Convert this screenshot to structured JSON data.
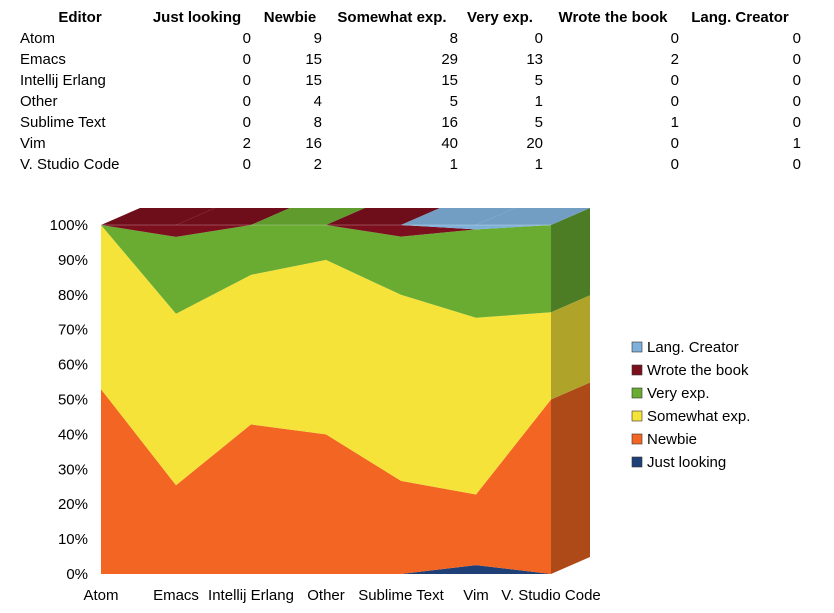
{
  "table": {
    "header_label": "Editor",
    "columns": [
      "Just looking",
      "Newbie",
      "Somewhat exp.",
      "Very exp.",
      "Wrote the book",
      "Lang. Creator"
    ],
    "rows": [
      {
        "editor": "Atom",
        "values": [
          "0",
          "9",
          "8",
          "0",
          "0",
          "0"
        ]
      },
      {
        "editor": "Emacs",
        "values": [
          "0",
          "15",
          "29",
          "13",
          "2",
          "0"
        ]
      },
      {
        "editor": "Intellij Erlang",
        "values": [
          "0",
          "15",
          "15",
          "5",
          "0",
          "0"
        ]
      },
      {
        "editor": "Other",
        "values": [
          "0",
          "4",
          "5",
          "1",
          "0",
          "0"
        ]
      },
      {
        "editor": "Sublime Text",
        "values": [
          "0",
          "8",
          "16",
          "5",
          "1",
          "0"
        ]
      },
      {
        "editor": "Vim",
        "values": [
          "2",
          "16",
          "40",
          "20",
          "0",
          "1"
        ]
      },
      {
        "editor": "V. Studio Code",
        "values": [
          "0",
          "2",
          "1",
          "1",
          "0",
          "0"
        ]
      }
    ]
  },
  "chart_data": {
    "type": "area",
    "stacked": "percent",
    "three_d": true,
    "title": "",
    "xlabel": "",
    "ylabel": "",
    "categories": [
      "Atom",
      "Emacs",
      "Intellij Erlang",
      "Other",
      "Sublime Text",
      "Vim",
      "V. Studio Code"
    ],
    "ylim": [
      0,
      100
    ],
    "ytick_labels": [
      "0%",
      "10%",
      "20%",
      "30%",
      "40%",
      "50%",
      "60%",
      "70%",
      "80%",
      "90%",
      "100%"
    ],
    "legend_position": "right",
    "series": [
      {
        "name": "Just looking",
        "color": "#1f3f77",
        "values": [
          0,
          0,
          0,
          0,
          0,
          2,
          0
        ]
      },
      {
        "name": "Newbie",
        "color": "#f26522",
        "values": [
          9,
          15,
          15,
          4,
          8,
          16,
          2
        ]
      },
      {
        "name": "Somewhat exp.",
        "color": "#f5e33a",
        "values": [
          8,
          29,
          15,
          5,
          16,
          40,
          1
        ]
      },
      {
        "name": "Very exp.",
        "color": "#6aac32",
        "values": [
          0,
          13,
          5,
          1,
          5,
          20,
          1
        ]
      },
      {
        "name": "Wrote the book",
        "color": "#7b0f1e",
        "values": [
          0,
          2,
          0,
          0,
          1,
          0,
          0
        ]
      },
      {
        "name": "Lang. Creator",
        "color": "#7fb0da",
        "values": [
          0,
          0,
          0,
          0,
          0,
          1,
          0
        ]
      }
    ]
  }
}
